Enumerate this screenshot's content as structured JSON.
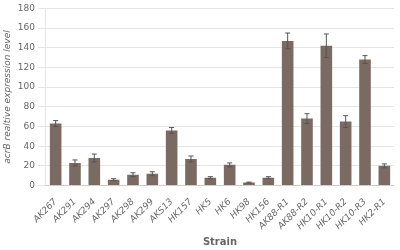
{
  "chart_data": {
    "type": "bar",
    "categories": [
      "AK267",
      "AK291",
      "AK294",
      "AK297",
      "AK298",
      "AK299",
      "AKS13",
      "HK157",
      "HK5",
      "HK6",
      "HK98",
      "HK156",
      "AK88-R1",
      "AK88-R2",
      "HK10-R1",
      "HK10-R2",
      "HK10-R3",
      "HK2-R1"
    ],
    "values": [
      63,
      23,
      28,
      6,
      11,
      12,
      56,
      27,
      8,
      21,
      3,
      8,
      147,
      68,
      142,
      65,
      128,
      20
    ],
    "errors": [
      3,
      3,
      4,
      1,
      2,
      2,
      3,
      3,
      1,
      2,
      0.5,
      1,
      8,
      5,
      12,
      6,
      4,
      2
    ],
    "color": "#7a6a62",
    "xlabel": "Strain",
    "ylabel": "acrB realtive expression level",
    "ylim": [
      0,
      180
    ],
    "yticks": [
      0,
      20,
      40,
      60,
      80,
      100,
      120,
      140,
      160,
      180
    ],
    "grid": true
  }
}
